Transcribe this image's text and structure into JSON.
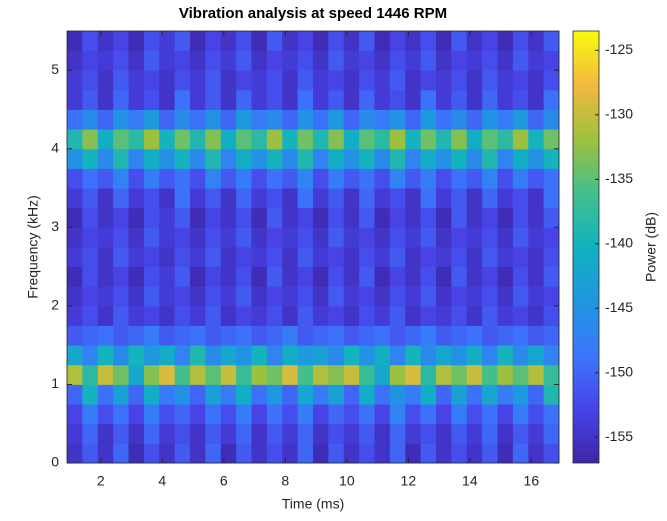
{
  "chart_data": {
    "type": "heatmap",
    "title": "Vibration analysis at speed 1446 RPM",
    "xlabel": "Time (ms)",
    "ylabel": "Frequency (kHz)",
    "colorbar_label": "Power (dB)",
    "xlim": [
      0.9,
      16.9
    ],
    "ylim": [
      0,
      5.5
    ],
    "xticks": [
      2,
      4,
      6,
      8,
      10,
      12,
      14,
      16
    ],
    "yticks": [
      0,
      1,
      2,
      3,
      4,
      5
    ],
    "zlim": [
      -157,
      -123.5
    ],
    "zticks": [
      -155,
      -150,
      -145,
      -140,
      -135,
      -130,
      -125
    ],
    "colormap": [
      "#3e26a8",
      "#4744e8",
      "#3b77fb",
      "#1f96e0",
      "#12b2c0",
      "#43bf8c",
      "#9fc13e",
      "#f2b93f",
      "#f9fb0e"
    ],
    "x": [
      1.15,
      1.65,
      2.15,
      2.65,
      3.15,
      3.65,
      4.15,
      4.65,
      5.15,
      5.65,
      6.15,
      6.65,
      7.15,
      7.65,
      8.15,
      8.65,
      9.15,
      9.65,
      10.15,
      10.65,
      11.15,
      11.65,
      12.15,
      12.65,
      13.15,
      13.65,
      14.15,
      14.65,
      15.15,
      15.65,
      16.15,
      16.65
    ],
    "y": [
      0.125,
      0.375,
      0.625,
      0.875,
      1.125,
      1.375,
      1.625,
      1.875,
      2.125,
      2.375,
      2.625,
      2.875,
      3.125,
      3.375,
      3.625,
      3.875,
      4.125,
      4.375,
      4.625,
      4.875,
      5.125,
      5.375
    ],
    "z": [
      [
        -155,
        -151,
        -155,
        -150,
        -156,
        -152,
        -155,
        -151,
        -155,
        -150,
        -156,
        -151,
        -155,
        -152,
        -155,
        -150,
        -156,
        -151,
        -155,
        -152,
        -155,
        -150,
        -156,
        -151,
        -155,
        -152,
        -155,
        -151,
        -156,
        -150,
        -155,
        -152
      ],
      [
        -154,
        -150,
        -155,
        -151,
        -155,
        -150,
        -154,
        -152,
        -155,
        -151,
        -154,
        -150,
        -155,
        -151,
        -154,
        -150,
        -155,
        -152,
        -154,
        -151,
        -155,
        -150,
        -154,
        -152,
        -155,
        -151,
        -154,
        -150,
        -155,
        -151,
        -154,
        -150
      ],
      [
        -153,
        -148,
        -152,
        -149,
        -153,
        -148,
        -152,
        -150,
        -153,
        -149,
        -152,
        -148,
        -153,
        -149,
        -152,
        -148,
        -153,
        -150,
        -152,
        -149,
        -153,
        -147,
        -152,
        -149,
        -153,
        -148,
        -152,
        -149,
        -153,
        -148,
        -152,
        -149
      ],
      [
        -150,
        -140,
        -149,
        -143,
        -150,
        -141,
        -148,
        -145,
        -150,
        -143,
        -148,
        -141,
        -149,
        -144,
        -150,
        -142,
        -148,
        -143,
        -150,
        -141,
        -149,
        -145,
        -148,
        -141,
        -150,
        -143,
        -149,
        -142,
        -148,
        -144,
        -150,
        -139
      ],
      [
        -131,
        -138,
        -130,
        -134,
        -142,
        -133,
        -129,
        -136,
        -131,
        -135,
        -130,
        -137,
        -132,
        -134,
        -129,
        -136,
        -131,
        -133,
        -130,
        -137,
        -142,
        -132,
        -129,
        -138,
        -131,
        -134,
        -130,
        -136,
        -132,
        -135,
        -131,
        -137
      ],
      [
        -142,
        -147,
        -140,
        -146,
        -140,
        -144,
        -141,
        -147,
        -139,
        -146,
        -142,
        -145,
        -140,
        -147,
        -141,
        -144,
        -143,
        -146,
        -140,
        -145,
        -141,
        -147,
        -140,
        -146,
        -142,
        -145,
        -141,
        -147,
        -140,
        -146,
        -142,
        -147
      ],
      [
        -151,
        -150,
        -149,
        -151,
        -150,
        -148,
        -151,
        -150,
        -149,
        -151,
        -150,
        -149,
        -151,
        -150,
        -148,
        -151,
        -150,
        -149,
        -151,
        -150,
        -149,
        -151,
        -150,
        -148,
        -151,
        -150,
        -149,
        -151,
        -150,
        -149,
        -151,
        -150
      ],
      [
        -154,
        -152,
        -155,
        -151,
        -154,
        -153,
        -155,
        -152,
        -154,
        -151,
        -155,
        -153,
        -154,
        -152,
        -155,
        -151,
        -154,
        -153,
        -155,
        -152,
        -154,
        -151,
        -155,
        -153,
        -154,
        -152,
        -155,
        -151,
        -154,
        -153,
        -155,
        -152
      ],
      [
        -155,
        -153,
        -154,
        -152,
        -155,
        -151,
        -154,
        -153,
        -155,
        -152,
        -154,
        -151,
        -155,
        -153,
        -154,
        -152,
        -155,
        -151,
        -154,
        -153,
        -155,
        -152,
        -154,
        -151,
        -155,
        -153,
        -154,
        -152,
        -155,
        -151,
        -154,
        -153
      ],
      [
        -156,
        -152,
        -155,
        -153,
        -156,
        -152,
        -154,
        -151,
        -156,
        -153,
        -155,
        -152,
        -156,
        -151,
        -155,
        -153,
        -156,
        -152,
        -155,
        -151,
        -156,
        -153,
        -155,
        -152,
        -156,
        -151,
        -155,
        -153,
        -156,
        -152,
        -155,
        -151
      ],
      [
        -154,
        -152,
        -155,
        -151,
        -154,
        -153,
        -155,
        -152,
        -154,
        -151,
        -155,
        -153,
        -154,
        -152,
        -155,
        -151,
        -154,
        -153,
        -155,
        -152,
        -154,
        -151,
        -155,
        -153,
        -154,
        -152,
        -155,
        -151,
        -154,
        -153,
        -155,
        -152
      ],
      [
        -155,
        -153,
        -154,
        -152,
        -155,
        -151,
        -154,
        -153,
        -155,
        -152,
        -154,
        -151,
        -155,
        -153,
        -154,
        -152,
        -155,
        -151,
        -154,
        -153,
        -155,
        -152,
        -154,
        -151,
        -155,
        -153,
        -154,
        -152,
        -155,
        -151,
        -154,
        -153
      ],
      [
        -156,
        -152,
        -155,
        -153,
        -156,
        -152,
        -154,
        -151,
        -156,
        -153,
        -155,
        -152,
        -156,
        -151,
        -155,
        -153,
        -156,
        -152,
        -155,
        -151,
        -156,
        -153,
        -155,
        -152,
        -156,
        -151,
        -155,
        -153,
        -156,
        -152,
        -155,
        -151
      ],
      [
        -154,
        -151,
        -155,
        -150,
        -154,
        -152,
        -155,
        -149,
        -154,
        -151,
        -155,
        -150,
        -154,
        -152,
        -155,
        -149,
        -154,
        -151,
        -155,
        -150,
        -154,
        -152,
        -155,
        -149,
        -154,
        -151,
        -155,
        -150,
        -154,
        -152,
        -155,
        -149
      ],
      [
        -152,
        -149,
        -151,
        -147,
        -152,
        -148,
        -151,
        -149,
        -152,
        -147,
        -151,
        -148,
        -152,
        -149,
        -151,
        -147,
        -152,
        -148,
        -151,
        -149,
        -152,
        -147,
        -151,
        -148,
        -152,
        -149,
        -151,
        -147,
        -152,
        -148,
        -151,
        -149
      ],
      [
        -145,
        -140,
        -146,
        -139,
        -147,
        -141,
        -145,
        -140,
        -146,
        -139,
        -147,
        -141,
        -145,
        -140,
        -146,
        -139,
        -147,
        -141,
        -145,
        -140,
        -146,
        -139,
        -147,
        -141,
        -145,
        -140,
        -146,
        -139,
        -147,
        -141,
        -145,
        -140
      ],
      [
        -139,
        -133,
        -141,
        -135,
        -138,
        -132,
        -140,
        -134,
        -139,
        -133,
        -141,
        -135,
        -138,
        -132,
        -140,
        -134,
        -139,
        -133,
        -141,
        -135,
        -138,
        -132,
        -140,
        -134,
        -139,
        -133,
        -141,
        -135,
        -138,
        -132,
        -140,
        -134
      ],
      [
        -149,
        -146,
        -150,
        -145,
        -148,
        -144,
        -150,
        -146,
        -149,
        -145,
        -150,
        -144,
        -148,
        -146,
        -150,
        -145,
        -149,
        -144,
        -150,
        -146,
        -148,
        -145,
        -150,
        -144,
        -149,
        -146,
        -150,
        -145,
        -148,
        -144,
        -150,
        -146
      ],
      [
        -154,
        -151,
        -155,
        -150,
        -154,
        -152,
        -155,
        -149,
        -154,
        -151,
        -155,
        -150,
        -154,
        -152,
        -155,
        -149,
        -154,
        -151,
        -155,
        -150,
        -154,
        -152,
        -155,
        -149,
        -154,
        -151,
        -155,
        -150,
        -154,
        -152,
        -155,
        -149
      ],
      [
        -154,
        -152,
        -155,
        -151,
        -154,
        -153,
        -155,
        -152,
        -154,
        -151,
        -155,
        -153,
        -154,
        -152,
        -155,
        -151,
        -154,
        -153,
        -155,
        -152,
        -154,
        -151,
        -155,
        -153,
        -154,
        -152,
        -155,
        -151,
        -154,
        -153,
        -155,
        -152
      ],
      [
        -155,
        -153,
        -154,
        -152,
        -155,
        -151,
        -154,
        -153,
        -155,
        -152,
        -154,
        -151,
        -155,
        -153,
        -154,
        -152,
        -155,
        -151,
        -154,
        -153,
        -155,
        -152,
        -154,
        -151,
        -155,
        -153,
        -154,
        -152,
        -155,
        -151,
        -154,
        -153
      ],
      [
        -156,
        -152,
        -155,
        -153,
        -156,
        -152,
        -154,
        -151,
        -156,
        -153,
        -155,
        -152,
        -156,
        -151,
        -155,
        -153,
        -156,
        -152,
        -155,
        -151,
        -156,
        -153,
        -155,
        -152,
        -156,
        -151,
        -155,
        -153,
        -156,
        -152,
        -155,
        -151
      ]
    ]
  }
}
